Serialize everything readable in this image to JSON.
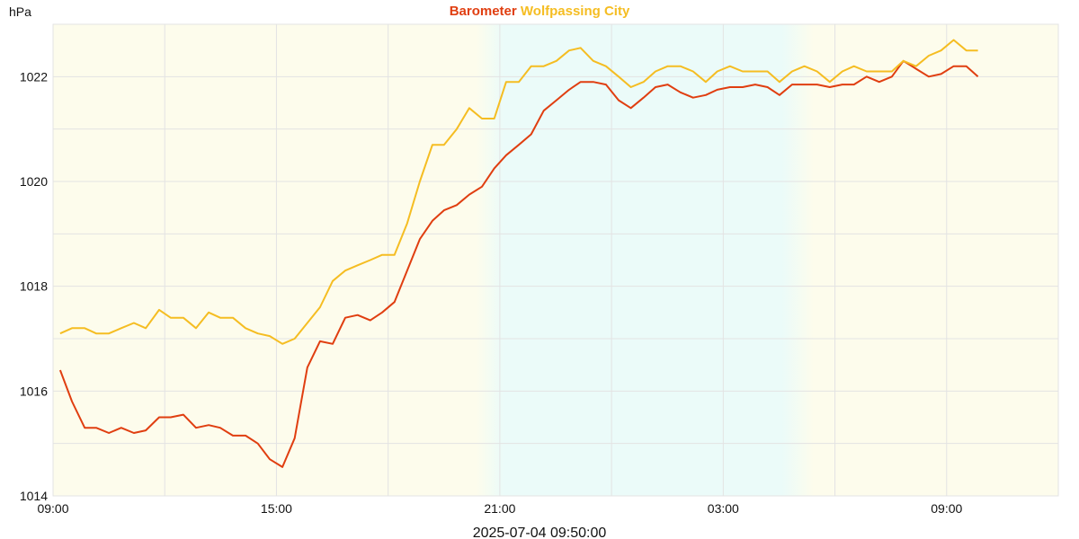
{
  "chart_data": {
    "type": "line",
    "y_label": "hPa",
    "x_label": "2025-07-04 09:50:00",
    "legend": "top",
    "grid": true,
    "xlim": [
      0,
      27
    ],
    "xticks": [
      {
        "value": 0,
        "label": "09:00"
      },
      {
        "value": 6,
        "label": "15:00"
      },
      {
        "value": 12,
        "label": "21:00"
      },
      {
        "value": 18,
        "label": "03:00"
      },
      {
        "value": 24,
        "label": "09:00"
      }
    ],
    "x_minor_grid": [
      3,
      9,
      15,
      21
    ],
    "ylim": [
      1014,
      1023
    ],
    "yticks": [
      1014,
      1016,
      1018,
      1020,
      1022
    ],
    "y_minor_grid": [
      1015,
      1017,
      1019,
      1021
    ],
    "x": [
      0.19,
      0.51,
      0.85,
      1.16,
      1.5,
      1.83,
      2.17,
      2.49,
      2.85,
      3.16,
      3.5,
      3.84,
      4.18,
      4.49,
      4.83,
      5.17,
      5.5,
      5.82,
      6.16,
      6.49,
      6.83,
      7.17,
      7.51,
      7.85,
      8.18,
      8.52,
      8.84,
      9.17,
      9.51,
      9.85,
      10.19,
      10.5,
      10.84,
      11.18,
      11.52,
      11.85,
      12.17,
      12.51,
      12.84,
      13.18,
      13.52,
      13.86,
      14.17,
      14.51,
      14.85,
      15.19,
      15.52,
      15.86,
      16.18,
      16.51,
      16.85,
      17.19,
      17.53,
      17.84,
      18.18,
      18.52,
      18.86,
      19.19,
      19.51,
      19.85,
      20.18,
      20.52,
      20.86,
      21.2,
      21.51,
      21.85,
      22.19,
      22.53,
      22.84,
      23.18,
      23.52,
      23.85,
      24.19,
      24.53,
      24.84
    ],
    "series": [
      {
        "name": "Barometer",
        "color": "#e03e10",
        "values": [
          1016.4,
          1015.8,
          1015.3,
          1015.3,
          1015.2,
          1015.3,
          1015.2,
          1015.25,
          1015.5,
          1015.5,
          1015.55,
          1015.3,
          1015.35,
          1015.3,
          1015.15,
          1015.15,
          1015.0,
          1014.7,
          1014.55,
          1015.1,
          1016.45,
          1016.95,
          1016.9,
          1017.4,
          1017.45,
          1017.35,
          1017.5,
          1017.7,
          1018.3,
          1018.9,
          1019.25,
          1019.45,
          1019.55,
          1019.75,
          1019.9,
          1020.25,
          1020.5,
          1020.7,
          1020.9,
          1021.35,
          1021.55,
          1021.75,
          1021.9,
          1021.9,
          1021.85,
          1021.55,
          1021.4,
          1021.6,
          1021.8,
          1021.85,
          1021.7,
          1021.6,
          1021.65,
          1021.75,
          1021.8,
          1021.8,
          1021.85,
          1021.8,
          1021.65,
          1021.85,
          1021.85,
          1021.85,
          1021.8,
          1021.85,
          1021.85,
          1022.0,
          1021.9,
          1022.0,
          1022.3,
          1022.15,
          1022.0,
          1022.05,
          1022.2,
          1022.2,
          1022.0
        ]
      },
      {
        "name": "Wolfpassing City",
        "color": "#f5bd22",
        "values": [
          1017.1,
          1017.2,
          1017.2,
          1017.1,
          1017.1,
          1017.2,
          1017.3,
          1017.2,
          1017.55,
          1017.4,
          1017.4,
          1017.2,
          1017.5,
          1017.4,
          1017.4,
          1017.2,
          1017.1,
          1017.05,
          1016.9,
          1017.0,
          1017.3,
          1017.6,
          1018.1,
          1018.3,
          1018.4,
          1018.5,
          1018.6,
          1018.6,
          1019.2,
          1020.0,
          1020.7,
          1020.7,
          1021.0,
          1021.4,
          1021.2,
          1021.2,
          1021.9,
          1021.9,
          1022.2,
          1022.2,
          1022.3,
          1022.5,
          1022.55,
          1022.3,
          1022.2,
          1022.0,
          1021.8,
          1021.9,
          1022.1,
          1022.2,
          1022.2,
          1022.1,
          1021.9,
          1022.1,
          1022.2,
          1022.1,
          1022.1,
          1022.1,
          1021.9,
          1022.1,
          1022.2,
          1022.1,
          1021.9,
          1022.1,
          1022.2,
          1022.1,
          1022.1,
          1022.1,
          1022.3,
          1022.2,
          1022.4,
          1022.5,
          1022.7,
          1022.5,
          1022.5
        ]
      }
    ]
  }
}
